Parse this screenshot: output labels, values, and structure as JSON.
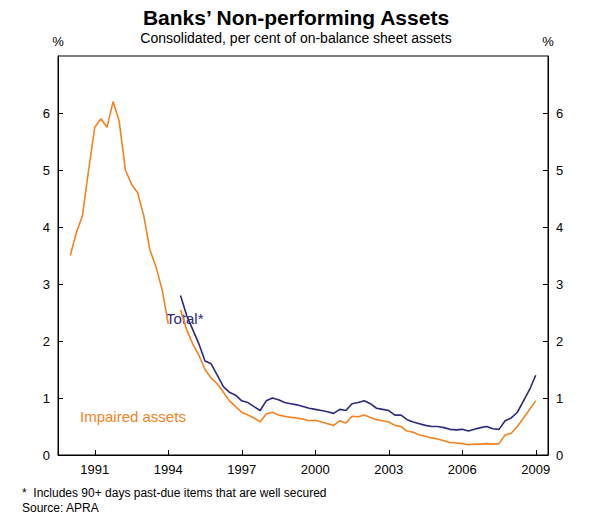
{
  "chart_data": {
    "type": "line",
    "title": "Banks’ Non-performing Assets",
    "subtitle": "Consolidated, per cent of on-balance sheet assets",
    "y_label": "%",
    "y2_label": "%",
    "x": [
      1990.0,
      1990.25,
      1990.5,
      1990.75,
      1991.0,
      1991.25,
      1991.5,
      1991.75,
      1992.0,
      1992.25,
      1992.5,
      1992.75,
      1993.0,
      1993.25,
      1993.5,
      1993.75,
      1994.0,
      1994.25,
      1994.5,
      1994.75,
      1995.0,
      1995.25,
      1995.5,
      1995.75,
      1996.0,
      1996.25,
      1996.5,
      1996.75,
      1997.0,
      1997.25,
      1997.5,
      1997.75,
      1998.0,
      1998.25,
      1998.5,
      1998.75,
      1999.0,
      1999.25,
      1999.5,
      1999.75,
      2000.0,
      2000.25,
      2000.5,
      2000.75,
      2001.0,
      2001.25,
      2001.5,
      2001.75,
      2002.0,
      2002.25,
      2002.5,
      2002.75,
      2003.0,
      2003.25,
      2003.5,
      2003.75,
      2004.0,
      2004.25,
      2004.5,
      2004.75,
      2005.0,
      2005.25,
      2005.5,
      2005.75,
      2006.0,
      2006.25,
      2006.5,
      2006.75,
      2007.0,
      2007.25,
      2007.5,
      2007.75,
      2008.0,
      2008.25,
      2008.5,
      2008.75,
      2009.0
    ],
    "series": [
      {
        "name": "Total*",
        "color": "#2b2a7f",
        "values": [
          null,
          null,
          null,
          null,
          null,
          null,
          null,
          null,
          null,
          null,
          null,
          null,
          null,
          null,
          null,
          null,
          null,
          null,
          2.8,
          2.45,
          2.2,
          1.95,
          1.65,
          1.6,
          1.4,
          1.2,
          1.1,
          1.05,
          0.95,
          0.92,
          0.85,
          0.78,
          0.95,
          1.0,
          0.97,
          0.92,
          0.9,
          0.88,
          0.85,
          0.82,
          0.8,
          0.78,
          0.76,
          0.73,
          0.8,
          0.78,
          0.9,
          0.92,
          0.95,
          0.9,
          0.82,
          0.8,
          0.78,
          0.7,
          0.7,
          0.62,
          0.58,
          0.55,
          0.52,
          0.5,
          0.5,
          0.48,
          0.45,
          0.44,
          0.45,
          0.42,
          0.45,
          0.48,
          0.5,
          0.46,
          0.45,
          0.6,
          0.65,
          0.75,
          0.95,
          1.15,
          1.4
        ]
      },
      {
        "name": "Impaired assets",
        "color": "#f5821f",
        "values": [
          3.5,
          3.9,
          4.2,
          5.0,
          5.75,
          5.9,
          5.75,
          6.2,
          5.85,
          5.0,
          4.75,
          4.6,
          4.2,
          3.6,
          3.3,
          2.9,
          2.3,
          null,
          2.55,
          2.2,
          1.95,
          1.75,
          1.5,
          1.35,
          1.25,
          1.1,
          0.95,
          0.85,
          0.75,
          0.7,
          0.65,
          0.58,
          0.72,
          0.75,
          0.7,
          0.68,
          0.66,
          0.65,
          0.63,
          0.6,
          0.61,
          0.58,
          0.55,
          0.52,
          0.6,
          0.56,
          0.68,
          0.67,
          0.7,
          0.66,
          0.62,
          0.6,
          0.58,
          0.52,
          0.5,
          0.42,
          0.4,
          0.35,
          0.33,
          0.3,
          0.28,
          0.25,
          0.22,
          0.21,
          0.2,
          0.18,
          0.19,
          0.19,
          0.2,
          0.19,
          0.2,
          0.35,
          0.38,
          0.5,
          0.65,
          0.8,
          0.95
        ]
      }
    ],
    "xlim": [
      1989.5,
      2009.5
    ],
    "xticks": [
      1991,
      1994,
      1997,
      2000,
      2003,
      2006,
      2009
    ],
    "ylim": [
      0,
      7
    ],
    "yticks": [
      0,
      1,
      2,
      3,
      4,
      5,
      6
    ],
    "y2lim": [
      0,
      7
    ],
    "y2ticks": [
      0,
      1,
      2,
      3,
      4,
      5,
      6
    ],
    "grid": false,
    "notes": [
      "*  Includes 90+ days past-due items that are well secured"
    ],
    "source": "Source: APRA"
  }
}
